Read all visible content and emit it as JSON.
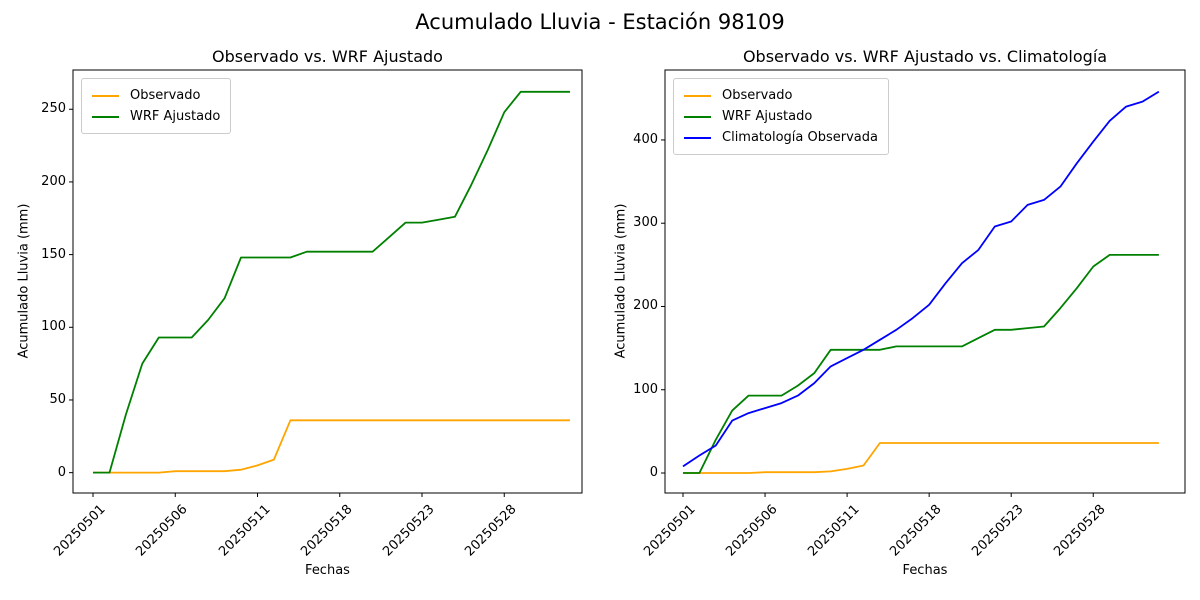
{
  "figure": {
    "suptitle": "Acumulado Lluvia - Estación 98109",
    "background": "#ffffff",
    "text_color": "#000000",
    "spine_color": "#000000"
  },
  "chart_data": [
    {
      "type": "line",
      "title": "Observado vs. WRF Ajustado",
      "xlabel": "Fechas",
      "ylabel": "Acumulado Lluvia (mm)",
      "n_points": 30,
      "grid": false,
      "legend_position": "upper left",
      "x_tick_indices": [
        0,
        5,
        10,
        15,
        20,
        25
      ],
      "x_tick_labels": [
        "20250501",
        "20250506",
        "20250511",
        "20250518",
        "20250523",
        "20250528"
      ],
      "y_ticks": [
        0,
        50,
        100,
        150,
        200,
        250
      ],
      "ylim": [
        -14,
        277
      ],
      "series": [
        {
          "name": "Observado",
          "color": "#FFA500",
          "values": [
            0,
            0,
            0,
            0,
            0,
            1,
            1,
            1,
            1,
            2,
            5,
            9,
            36,
            36,
            36,
            36,
            36,
            36,
            36,
            36,
            36,
            36,
            36,
            36,
            36,
            36,
            36,
            36,
            36,
            36
          ]
        },
        {
          "name": "WRF Ajustado",
          "color": "#008000",
          "values": [
            0,
            0,
            40,
            75,
            93,
            93,
            93,
            105,
            120,
            148,
            148,
            148,
            148,
            152,
            152,
            152,
            152,
            152,
            162,
            172,
            172,
            174,
            176,
            198,
            222,
            248,
            262,
            262,
            262,
            262
          ]
        }
      ]
    },
    {
      "type": "line",
      "title": "Observado vs. WRF Ajustado vs. Climatología",
      "xlabel": "Fechas",
      "ylabel": "Acumulado Lluvia (mm)",
      "n_points": 30,
      "grid": false,
      "legend_position": "upper left",
      "x_tick_indices": [
        0,
        5,
        10,
        15,
        20,
        25
      ],
      "x_tick_labels": [
        "20250501",
        "20250506",
        "20250511",
        "20250518",
        "20250523",
        "20250528"
      ],
      "y_ticks": [
        0,
        100,
        200,
        300,
        400
      ],
      "ylim": [
        -24,
        484
      ],
      "series": [
        {
          "name": "Observado",
          "color": "#FFA500",
          "values": [
            0,
            0,
            0,
            0,
            0,
            1,
            1,
            1,
            1,
            2,
            5,
            9,
            36,
            36,
            36,
            36,
            36,
            36,
            36,
            36,
            36,
            36,
            36,
            36,
            36,
            36,
            36,
            36,
            36,
            36
          ]
        },
        {
          "name": "WRF Ajustado",
          "color": "#008000",
          "values": [
            0,
            0,
            40,
            75,
            93,
            93,
            93,
            105,
            120,
            148,
            148,
            148,
            148,
            152,
            152,
            152,
            152,
            152,
            162,
            172,
            172,
            174,
            176,
            198,
            222,
            248,
            262,
            262,
            262,
            262
          ]
        },
        {
          "name": "Climatología Observada",
          "color": "#0000FF",
          "values": [
            8,
            21,
            33,
            63,
            72,
            78,
            84,
            93,
            108,
            128,
            138,
            148,
            160,
            172,
            186,
            202,
            228,
            252,
            268,
            296,
            302,
            322,
            328,
            344,
            372,
            398,
            423,
            440,
            446,
            458
          ]
        }
      ]
    }
  ]
}
